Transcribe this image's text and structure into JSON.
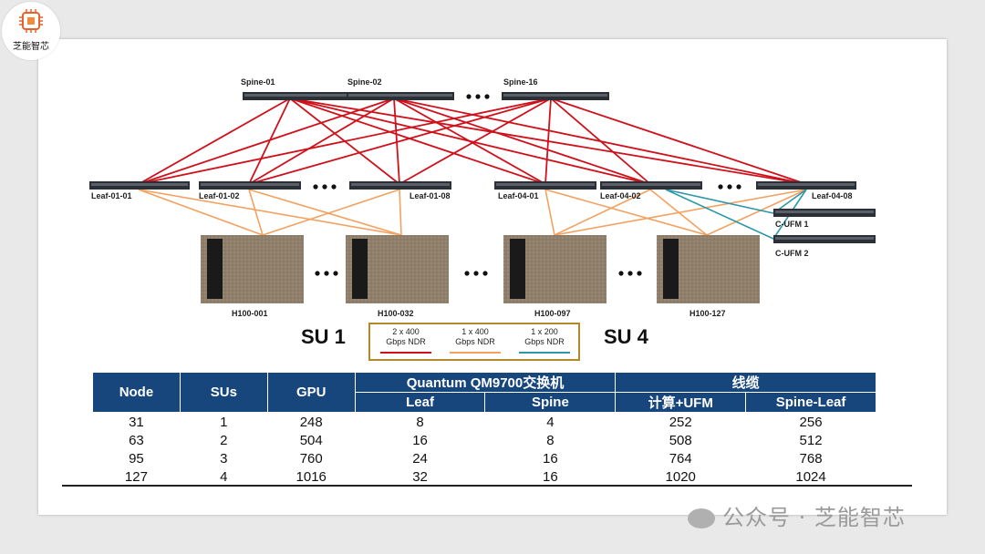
{
  "brand": {
    "name": "芝能智芯",
    "logo_icon": "chip-icon"
  },
  "spines": [
    "Spine-01",
    "Spine-02",
    "Spine-16"
  ],
  "leaves": [
    "Leaf-01-01",
    "Leaf-01-02",
    "Leaf-01-08",
    "Leaf-04-01",
    "Leaf-04-02",
    "Leaf-04-08"
  ],
  "ufm": [
    "C-UFM 1",
    "C-UFM 2"
  ],
  "servers": [
    "H100-001",
    "H100-032",
    "H100-097",
    "H100-127"
  ],
  "su_labels": [
    "SU 1",
    "SU 4"
  ],
  "legend": [
    {
      "line1": "2 x 400",
      "line2": "Gbps NDR",
      "color": "#d0101a"
    },
    {
      "line1": "1 x 400",
      "line2": "Gbps NDR",
      "color": "#f4a160"
    },
    {
      "line1": "1 x 200",
      "line2": "Gbps NDR",
      "color": "#2a98a8"
    }
  ],
  "table": {
    "headers": {
      "node": "Node",
      "sus": "SUs",
      "gpu": "GPU",
      "quantum": "Quantum QM9700交换机",
      "leaf": "Leaf",
      "spine": "Spine",
      "cables": "线缆",
      "compute_ufm": "计算+UFM",
      "spine_leaf": "Spine-Leaf"
    },
    "rows": [
      [
        "31",
        "1",
        "248",
        "8",
        "4",
        "252",
        "256"
      ],
      [
        "63",
        "2",
        "504",
        "16",
        "8",
        "508",
        "512"
      ],
      [
        "95",
        "3",
        "760",
        "24",
        "16",
        "764",
        "768"
      ],
      [
        "127",
        "4",
        "1016",
        "32",
        "16",
        "1020",
        "1024"
      ]
    ]
  },
  "watermark": "公众号 · 芝能智芯",
  "colors": {
    "header_blue": "#17467c",
    "spine_link": "#d0101a",
    "leaf_link": "#f4a160",
    "ufm_link": "#2a98a8"
  }
}
